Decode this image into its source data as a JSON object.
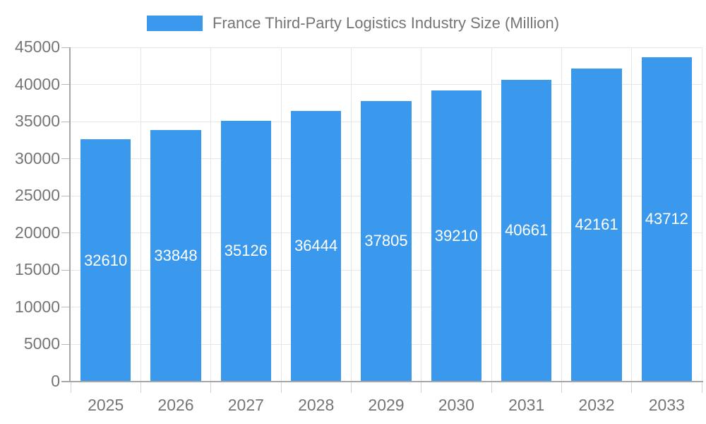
{
  "chart_data": {
    "type": "bar",
    "title": "France Third-Party Logistics Industry Size (Million)",
    "categories": [
      "2025",
      "2026",
      "2027",
      "2028",
      "2029",
      "2030",
      "2031",
      "2032",
      "2033"
    ],
    "values": [
      32610,
      33848,
      35126,
      36444,
      37805,
      39210,
      40661,
      42161,
      43712
    ],
    "xlabel": "",
    "ylabel": "",
    "ylim": [
      0,
      45000
    ],
    "ytick_step": 5000,
    "grid": true,
    "legend_position": "top",
    "value_labels": "inside-center",
    "colors": {
      "bar": "#3B99ED",
      "bar_label": "#FFFFFF",
      "axis_text": "#757575",
      "axis_line": "#A6A6A6",
      "gridline": "#E6E6E6",
      "y_tick": "#B8B8B8",
      "x_tick": "#D2D2D2",
      "background": "#FFFFFF"
    }
  }
}
